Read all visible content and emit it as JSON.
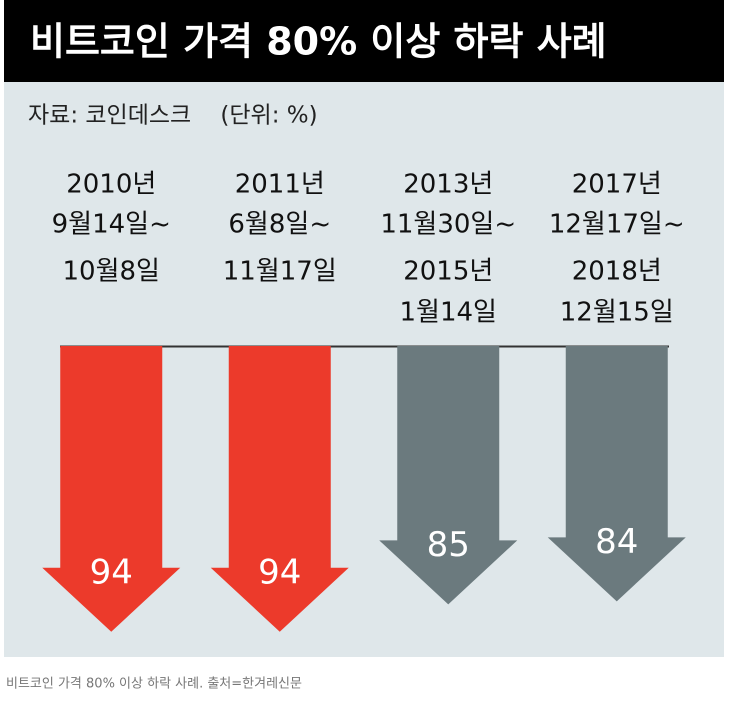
{
  "chart_data": {
    "type": "arrow",
    "title": "비트코인 가격 80% 이상 하락 사례",
    "subtitle": "자료: 코인데스크    (단위: %)",
    "caption": "비트코인 가격 80% 이상 하락 사례. 출처=한겨레신문",
    "start_labels": [
      [
        "2010년",
        "9월14일~"
      ],
      [
        "2011년",
        "6월8일~"
      ],
      [
        "2013년",
        "11월30일~"
      ],
      [
        "2017년",
        "12월17일~"
      ]
    ],
    "end_labels": [
      [
        "10월8일"
      ],
      [
        "11월17일"
      ],
      [
        "2015년",
        "1월14일"
      ],
      [
        "2018년",
        "12월15일"
      ]
    ],
    "values": [
      94,
      94,
      85,
      84
    ],
    "colors": [
      "#ec3a2b",
      "#ec3a2b",
      "#6b7a7e",
      "#6b7a7e"
    ],
    "ylim": [
      0,
      100
    ]
  }
}
